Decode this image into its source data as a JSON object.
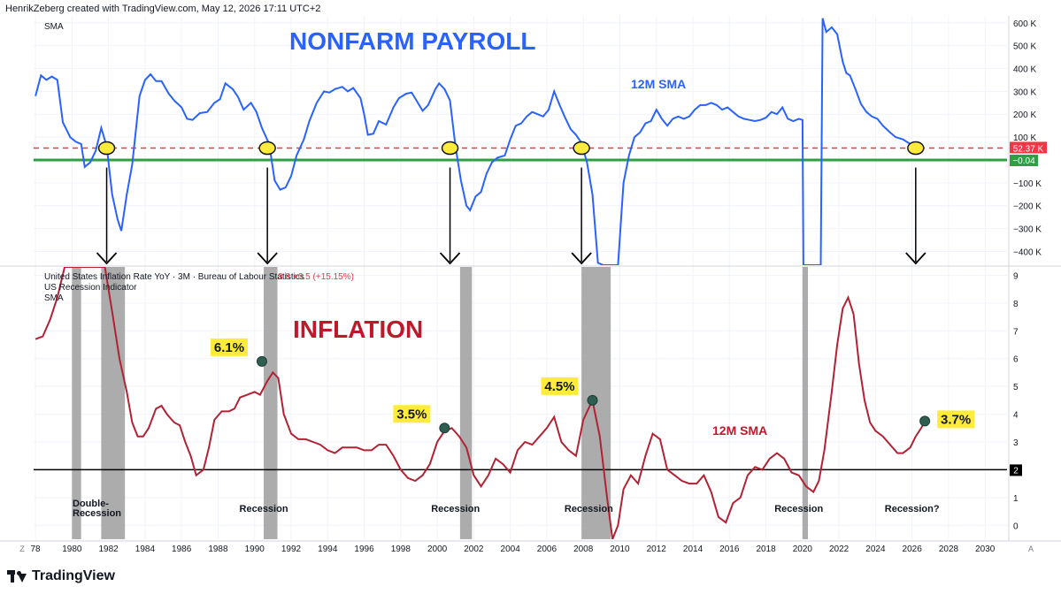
{
  "header": {
    "attribution": "HenrikZeberg created with TradingView.com, May 12, 2026 17:11 UTC+2"
  },
  "footer": {
    "brand": "TradingView",
    "corner_left": "Z",
    "corner_right": "A"
  },
  "colors": {
    "payroll_line": "#2962ff",
    "inflation_line": "#b22234",
    "recession_band": "#9e9e9e",
    "zero_line": "#2ea043",
    "dashed_line": "#f23645",
    "title_blue": "#2962ff",
    "title_red": "#c0182a",
    "highlight": "#ffeb3b"
  },
  "chart_data": [
    {
      "type": "line",
      "title": "NONFARM PAYROLL",
      "indicator_label": "SMA",
      "series_label": "12M SMA",
      "yticks": [
        "600 K",
        "500 K",
        "400 K",
        "300 K",
        "200 K",
        "100 K",
        "−100 K",
        "−200 K",
        "−300 K",
        "−400 K"
      ],
      "ytick_values": [
        600,
        500,
        400,
        300,
        200,
        100,
        -100,
        -200,
        -300,
        -400
      ],
      "ylim": [
        -460,
        630
      ],
      "value_tags": {
        "current": "52.37 K",
        "zero": "−0.04"
      },
      "reference_lines": [
        52.37,
        0
      ],
      "points": [
        [
          1978.0,
          280
        ],
        [
          1978.3,
          370
        ],
        [
          1978.6,
          350
        ],
        [
          1978.9,
          365
        ],
        [
          1979.2,
          350
        ],
        [
          1979.5,
          165
        ],
        [
          1979.9,
          100
        ],
        [
          1980.2,
          80
        ],
        [
          1980.5,
          70
        ],
        [
          1980.7,
          -30
        ],
        [
          1981.0,
          -10
        ],
        [
          1981.3,
          40
        ],
        [
          1981.6,
          140
        ],
        [
          1981.9,
          60
        ],
        [
          1982.2,
          -150
        ],
        [
          1982.5,
          -260
        ],
        [
          1982.7,
          -310
        ],
        [
          1983.0,
          -150
        ],
        [
          1983.3,
          -20
        ],
        [
          1983.7,
          280
        ],
        [
          1984.0,
          350
        ],
        [
          1984.3,
          375
        ],
        [
          1984.6,
          345
        ],
        [
          1984.9,
          345
        ],
        [
          1985.3,
          290
        ],
        [
          1985.6,
          260
        ],
        [
          1986.0,
          230
        ],
        [
          1986.3,
          180
        ],
        [
          1986.6,
          175
        ],
        [
          1987.0,
          205
        ],
        [
          1987.4,
          210
        ],
        [
          1987.8,
          250
        ],
        [
          1988.1,
          265
        ],
        [
          1988.4,
          335
        ],
        [
          1988.8,
          310
        ],
        [
          1989.1,
          275
        ],
        [
          1989.4,
          220
        ],
        [
          1989.8,
          250
        ],
        [
          1990.1,
          210
        ],
        [
          1990.4,
          140
        ],
        [
          1990.8,
          70
        ],
        [
          1991.1,
          -90
        ],
        [
          1991.4,
          -130
        ],
        [
          1991.7,
          -120
        ],
        [
          1992.0,
          -70
        ],
        [
          1992.3,
          20
        ],
        [
          1992.7,
          90
        ],
        [
          1993.0,
          170
        ],
        [
          1993.4,
          250
        ],
        [
          1993.8,
          300
        ],
        [
          1994.1,
          295
        ],
        [
          1994.4,
          310
        ],
        [
          1994.8,
          320
        ],
        [
          1995.1,
          300
        ],
        [
          1995.4,
          315
        ],
        [
          1995.8,
          270
        ],
        [
          1996.0,
          200
        ],
        [
          1996.2,
          110
        ],
        [
          1996.5,
          115
        ],
        [
          1996.8,
          170
        ],
        [
          1997.2,
          155
        ],
        [
          1997.6,
          230
        ],
        [
          1997.9,
          270
        ],
        [
          1998.3,
          290
        ],
        [
          1998.6,
          295
        ],
        [
          1998.9,
          255
        ],
        [
          1999.2,
          215
        ],
        [
          1999.5,
          240
        ],
        [
          1999.9,
          310
        ],
        [
          2000.1,
          335
        ],
        [
          2000.4,
          310
        ],
        [
          2000.7,
          260
        ],
        [
          2001.0,
          60
        ],
        [
          2001.3,
          -90
        ],
        [
          2001.6,
          -200
        ],
        [
          2001.8,
          -220
        ],
        [
          2002.1,
          -160
        ],
        [
          2002.4,
          -140
        ],
        [
          2002.7,
          -60
        ],
        [
          2003.0,
          -10
        ],
        [
          2003.3,
          10
        ],
        [
          2003.7,
          20
        ],
        [
          2004.0,
          90
        ],
        [
          2004.3,
          150
        ],
        [
          2004.6,
          160
        ],
        [
          2004.9,
          190
        ],
        [
          2005.2,
          210
        ],
        [
          2005.5,
          200
        ],
        [
          2005.8,
          190
        ],
        [
          2006.1,
          220
        ],
        [
          2006.4,
          300
        ],
        [
          2006.7,
          240
        ],
        [
          2007.0,
          185
        ],
        [
          2007.3,
          135
        ],
        [
          2007.6,
          110
        ],
        [
          2007.9,
          75
        ],
        [
          2008.2,
          -10
        ],
        [
          2008.5,
          -150
        ],
        [
          2008.8,
          -450
        ],
        [
          2009.1,
          -460
        ],
        [
          2009.4,
          -460
        ],
        [
          2009.9,
          -460
        ],
        [
          2010.2,
          -100
        ],
        [
          2010.5,
          20
        ],
        [
          2010.8,
          100
        ],
        [
          2011.1,
          120
        ],
        [
          2011.4,
          160
        ],
        [
          2011.7,
          170
        ],
        [
          2012.0,
          220
        ],
        [
          2012.3,
          180
        ],
        [
          2012.6,
          150
        ],
        [
          2012.9,
          180
        ],
        [
          2013.2,
          190
        ],
        [
          2013.5,
          180
        ],
        [
          2013.8,
          190
        ],
        [
          2014.1,
          220
        ],
        [
          2014.4,
          240
        ],
        [
          2014.7,
          240
        ],
        [
          2015.0,
          250
        ],
        [
          2015.3,
          240
        ],
        [
          2015.6,
          220
        ],
        [
          2015.9,
          230
        ],
        [
          2016.2,
          210
        ],
        [
          2016.5,
          190
        ],
        [
          2016.8,
          180
        ],
        [
          2017.1,
          175
        ],
        [
          2017.4,
          170
        ],
        [
          2017.7,
          175
        ],
        [
          2018.0,
          185
        ],
        [
          2018.3,
          210
        ],
        [
          2018.6,
          200
        ],
        [
          2018.9,
          230
        ],
        [
          2019.2,
          180
        ],
        [
          2019.5,
          170
        ],
        [
          2019.8,
          180
        ],
        [
          2020.0,
          175
        ],
        [
          2020.05,
          -460
        ],
        [
          2021.0,
          -460
        ],
        [
          2021.1,
          620
        ],
        [
          2021.3,
          560
        ],
        [
          2021.6,
          580
        ],
        [
          2021.9,
          550
        ],
        [
          2022.2,
          430
        ],
        [
          2022.4,
          380
        ],
        [
          2022.6,
          370
        ],
        [
          2022.9,
          310
        ],
        [
          2023.2,
          245
        ],
        [
          2023.5,
          210
        ],
        [
          2023.8,
          190
        ],
        [
          2024.1,
          180
        ],
        [
          2024.4,
          150
        ],
        [
          2024.8,
          120
        ],
        [
          2025.1,
          100
        ],
        [
          2025.5,
          90
        ],
        [
          2025.8,
          75
        ],
        [
          2026.1,
          60
        ],
        [
          2026.4,
          55
        ]
      ],
      "annotations": [
        {
          "x": 1981.9,
          "y": 52
        },
        {
          "x": 1990.7,
          "y": 52
        },
        {
          "x": 2000.7,
          "y": 52
        },
        {
          "x": 2007.9,
          "y": 52
        },
        {
          "x": 2026.2,
          "y": 52
        }
      ]
    },
    {
      "type": "line",
      "title": "INFLATION",
      "legend": [
        {
          "name": "United States Inflation Rate YoY · 3M · Bureau of Labour Statistics",
          "value": "3.8",
          "change": "+0.5 (+15.15%)"
        },
        {
          "name": "US Recession Indicator"
        },
        {
          "name": "SMA"
        }
      ],
      "series_label": "12M SMA",
      "yticks": [
        "9",
        "8",
        "7",
        "6",
        "5",
        "4",
        "3",
        "2",
        "1",
        "0"
      ],
      "ytick_values": [
        9,
        8,
        7,
        6,
        5,
        4,
        3,
        2,
        1,
        0
      ],
      "ylim": [
        -0.5,
        9.3
      ],
      "hline_value": 2,
      "hline_tag": "2",
      "xticks": [
        "78",
        "1980",
        "1982",
        "1984",
        "1986",
        "1988",
        "1990",
        "1992",
        "1994",
        "1996",
        "1998",
        "2000",
        "2002",
        "2004",
        "2006",
        "2008",
        "2010",
        "2012",
        "2014",
        "2016",
        "2018",
        "2020",
        "2022",
        "2024",
        "2026",
        "2028",
        "2030"
      ],
      "xtick_values": [
        1978,
        1980,
        1982,
        1984,
        1986,
        1988,
        1990,
        1992,
        1994,
        1996,
        1998,
        2000,
        2002,
        2004,
        2006,
        2008,
        2010,
        2012,
        2014,
        2016,
        2018,
        2020,
        2022,
        2024,
        2026,
        2028,
        2030
      ],
      "xlim": [
        1977.9,
        2031.2
      ],
      "recessions": [
        [
          1980.0,
          1980.5
        ],
        [
          1981.6,
          1982.9
        ],
        [
          1990.5,
          1991.25
        ],
        [
          2001.25,
          2001.9
        ],
        [
          2007.9,
          2009.5
        ],
        [
          2020.0,
          2020.3
        ]
      ],
      "recession_labels": [
        {
          "text": "Double-\nRecession",
          "x": 1981.0
        },
        {
          "text": "Recession",
          "x": 1990.5
        },
        {
          "text": "Recession",
          "x": 2001.0
        },
        {
          "text": "Recession",
          "x": 2008.3
        },
        {
          "text": "Recession",
          "x": 2019.8
        },
        {
          "text": "Recession?",
          "x": 2026.0
        }
      ],
      "highlight_labels": [
        {
          "text": "6.1%",
          "x": 1990.4,
          "y": 5.9
        },
        {
          "text": "3.5%",
          "x": 2000.4,
          "y": 3.5
        },
        {
          "text": "4.5%",
          "x": 2008.5,
          "y": 4.5
        },
        {
          "text": "3.7%",
          "x": 2026.7,
          "y": 3.75
        }
      ],
      "points": [
        [
          1978.0,
          6.7
        ],
        [
          1978.4,
          6.8
        ],
        [
          1978.8,
          7.4
        ],
        [
          1979.2,
          8.2
        ],
        [
          1979.6,
          9.3
        ],
        [
          1981.8,
          9.3
        ],
        [
          1982.2,
          7.7
        ],
        [
          1982.6,
          6.0
        ],
        [
          1983.0,
          4.8
        ],
        [
          1983.3,
          3.7
        ],
        [
          1983.6,
          3.2
        ],
        [
          1983.9,
          3.2
        ],
        [
          1984.2,
          3.5
        ],
        [
          1984.6,
          4.2
        ],
        [
          1984.9,
          4.3
        ],
        [
          1985.2,
          4.0
        ],
        [
          1985.6,
          3.7
        ],
        [
          1985.9,
          3.6
        ],
        [
          1986.2,
          3.0
        ],
        [
          1986.5,
          2.5
        ],
        [
          1986.8,
          1.8
        ],
        [
          1987.2,
          2.0
        ],
        [
          1987.5,
          2.8
        ],
        [
          1987.8,
          3.8
        ],
        [
          1988.2,
          4.1
        ],
        [
          1988.6,
          4.1
        ],
        [
          1988.9,
          4.2
        ],
        [
          1989.2,
          4.6
        ],
        [
          1989.6,
          4.7
        ],
        [
          1990.0,
          4.8
        ],
        [
          1990.3,
          4.7
        ],
        [
          1990.7,
          5.2
        ],
        [
          1991.0,
          5.5
        ],
        [
          1991.3,
          5.3
        ],
        [
          1991.6,
          4.0
        ],
        [
          1992.0,
          3.3
        ],
        [
          1992.4,
          3.1
        ],
        [
          1992.8,
          3.1
        ],
        [
          1993.2,
          3.0
        ],
        [
          1993.6,
          2.9
        ],
        [
          1994.0,
          2.7
        ],
        [
          1994.4,
          2.6
        ],
        [
          1994.8,
          2.8
        ],
        [
          1995.2,
          2.8
        ],
        [
          1995.6,
          2.8
        ],
        [
          1996.0,
          2.7
        ],
        [
          1996.4,
          2.7
        ],
        [
          1996.8,
          2.9
        ],
        [
          1997.2,
          2.9
        ],
        [
          1997.6,
          2.5
        ],
        [
          1998.0,
          2.0
        ],
        [
          1998.4,
          1.7
        ],
        [
          1998.8,
          1.6
        ],
        [
          1999.2,
          1.8
        ],
        [
          1999.6,
          2.2
        ],
        [
          2000.0,
          3.0
        ],
        [
          2000.4,
          3.4
        ],
        [
          2000.8,
          3.5
        ],
        [
          2001.2,
          3.2
        ],
        [
          2001.6,
          2.8
        ],
        [
          2002.0,
          1.8
        ],
        [
          2002.4,
          1.4
        ],
        [
          2002.8,
          1.8
        ],
        [
          2003.2,
          2.4
        ],
        [
          2003.6,
          2.2
        ],
        [
          2004.0,
          1.9
        ],
        [
          2004.4,
          2.7
        ],
        [
          2004.8,
          3.0
        ],
        [
          2005.2,
          2.9
        ],
        [
          2005.6,
          3.2
        ],
        [
          2006.0,
          3.5
        ],
        [
          2006.4,
          3.9
        ],
        [
          2006.8,
          3.0
        ],
        [
          2007.2,
          2.7
        ],
        [
          2007.6,
          2.5
        ],
        [
          2008.0,
          3.8
        ],
        [
          2008.5,
          4.5
        ],
        [
          2008.9,
          3.2
        ],
        [
          2009.3,
          1.0
        ],
        [
          2009.6,
          -0.5
        ],
        [
          2009.9,
          0.0
        ],
        [
          2010.2,
          1.3
        ],
        [
          2010.6,
          1.8
        ],
        [
          2011.0,
          1.5
        ],
        [
          2011.4,
          2.5
        ],
        [
          2011.8,
          3.3
        ],
        [
          2012.2,
          3.1
        ],
        [
          2012.6,
          2.0
        ],
        [
          2013.0,
          1.8
        ],
        [
          2013.4,
          1.6
        ],
        [
          2013.8,
          1.5
        ],
        [
          2014.2,
          1.5
        ],
        [
          2014.6,
          1.8
        ],
        [
          2015.0,
          1.2
        ],
        [
          2015.4,
          0.3
        ],
        [
          2015.8,
          0.1
        ],
        [
          2016.2,
          0.8
        ],
        [
          2016.6,
          1.0
        ],
        [
          2017.0,
          1.8
        ],
        [
          2017.4,
          2.1
        ],
        [
          2017.8,
          2.0
        ],
        [
          2018.2,
          2.4
        ],
        [
          2018.6,
          2.6
        ],
        [
          2019.0,
          2.4
        ],
        [
          2019.4,
          1.9
        ],
        [
          2019.8,
          1.8
        ],
        [
          2020.2,
          1.4
        ],
        [
          2020.6,
          1.2
        ],
        [
          2020.9,
          1.6
        ],
        [
          2021.2,
          2.7
        ],
        [
          2021.6,
          4.8
        ],
        [
          2021.9,
          6.5
        ],
        [
          2022.2,
          7.8
        ],
        [
          2022.5,
          8.2
        ],
        [
          2022.8,
          7.6
        ],
        [
          2023.1,
          5.8
        ],
        [
          2023.4,
          4.5
        ],
        [
          2023.7,
          3.7
        ],
        [
          2024.0,
          3.4
        ],
        [
          2024.4,
          3.2
        ],
        [
          2024.8,
          2.9
        ],
        [
          2025.2,
          2.6
        ],
        [
          2025.5,
          2.6
        ],
        [
          2025.9,
          2.8
        ],
        [
          2026.2,
          3.2
        ],
        [
          2026.5,
          3.5
        ],
        [
          2026.7,
          3.75
        ]
      ]
    }
  ]
}
